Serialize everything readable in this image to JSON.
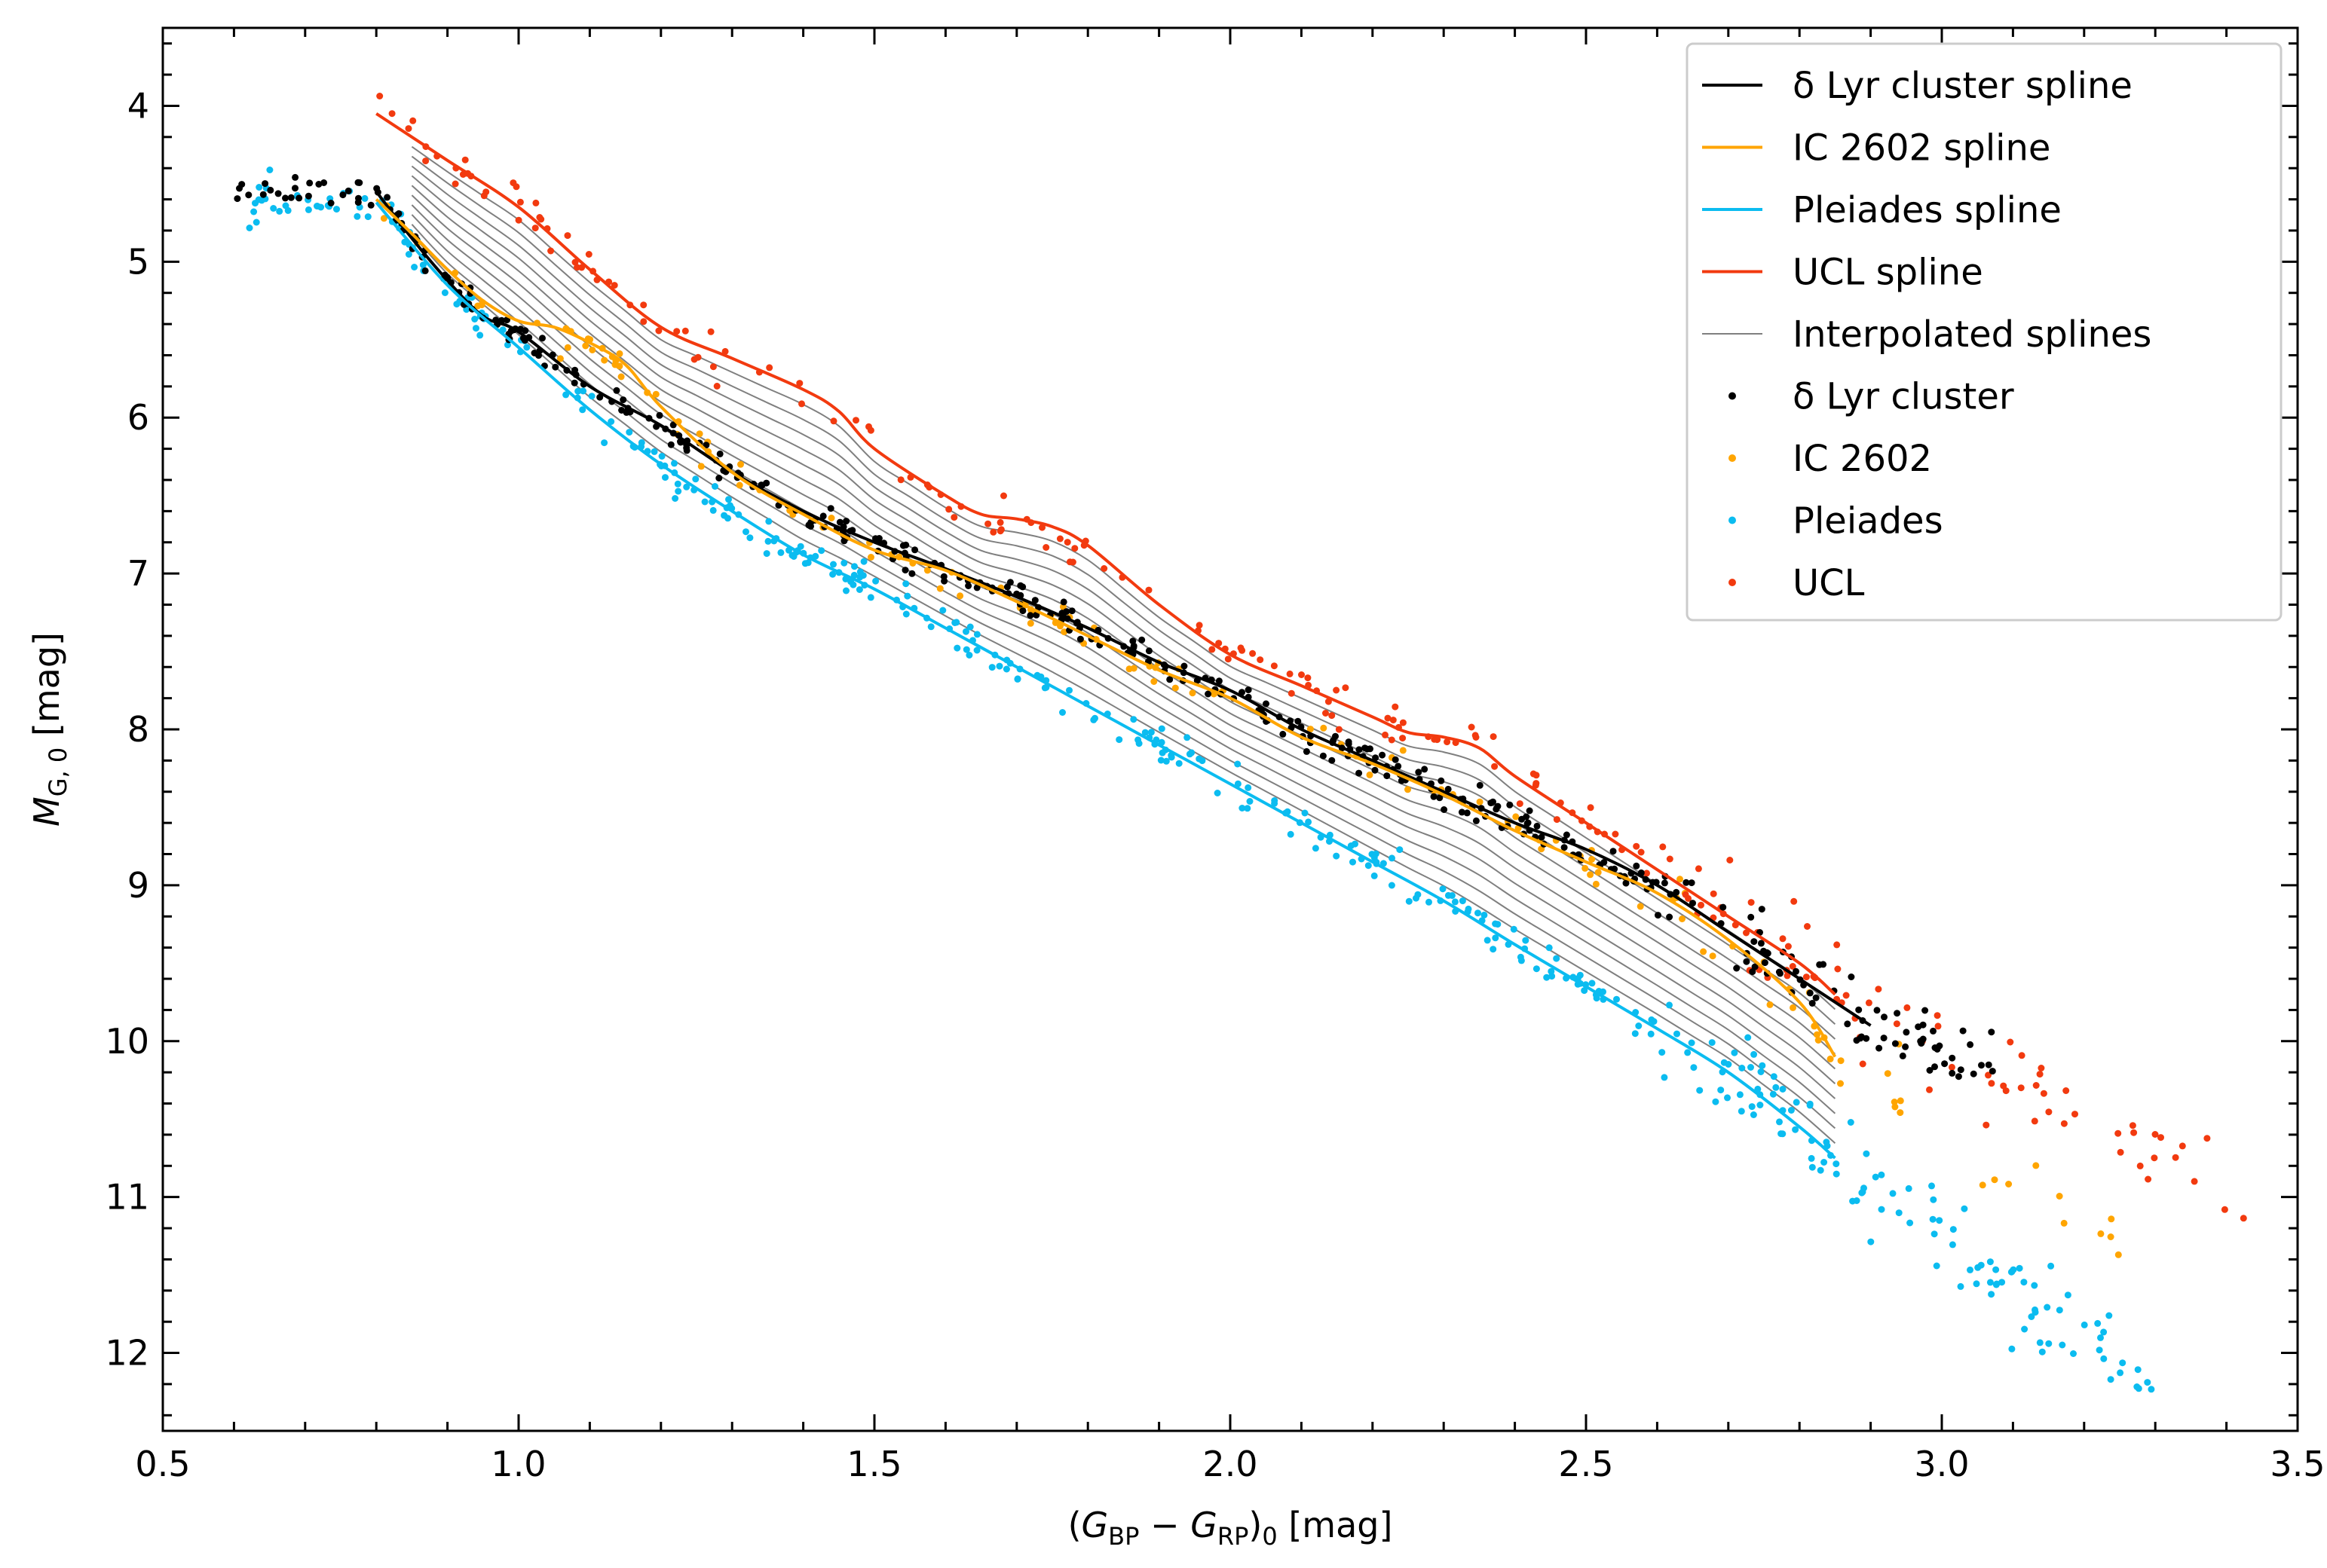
{
  "chart_data": {
    "type": "scatter",
    "xlabel": {
      "main": "G",
      "sub1": "BP",
      "minus": " − ",
      "sub2": "RP",
      "post": "0",
      "unit": " [mag]"
    },
    "ylabel": {
      "main": "M",
      "sub": "G, 0",
      "unit": " [mag]"
    },
    "xlim": [
      0.5,
      3.5
    ],
    "ylim": [
      12.5,
      3.5
    ],
    "y_inverted": true,
    "x_ticks": [
      "0.5",
      "1.0",
      "1.5",
      "2.0",
      "2.5",
      "3.0",
      "3.5"
    ],
    "y_ticks": [
      "4",
      "5",
      "6",
      "7",
      "8",
      "9",
      "10",
      "11",
      "12"
    ],
    "legend_position": "top-right",
    "legend": [
      {
        "label": "δ Lyr cluster spline",
        "kind": "line",
        "color": "#000000"
      },
      {
        "label": "IC 2602 spline",
        "kind": "line",
        "color": "#FFA500"
      },
      {
        "label": "Pleiades spline",
        "kind": "line",
        "color": "#0BBCF0"
      },
      {
        "label": "UCL spline",
        "kind": "line",
        "color": "#F23A0F"
      },
      {
        "label": "Interpolated splines",
        "kind": "thin",
        "color": "#7f7f7f"
      },
      {
        "label": "δ Lyr cluster",
        "kind": "dot",
        "color": "#000000"
      },
      {
        "label": "IC 2602",
        "kind": "dot",
        "color": "#FFA500"
      },
      {
        "label": "Pleiades",
        "kind": "dot",
        "color": "#0BBCF0"
      },
      {
        "label": "UCL",
        "kind": "dot",
        "color": "#F23A0F"
      }
    ],
    "splines": [
      {
        "name": "δ Lyr cluster spline",
        "color": "#000000",
        "x": [
          0.8,
          0.85,
          0.9,
          0.95,
          1.0,
          1.1,
          1.2,
          1.3,
          1.4,
          1.5,
          1.6,
          1.7,
          1.8,
          1.9,
          2.0,
          2.1,
          2.2,
          2.3,
          2.4,
          2.5,
          2.6,
          2.7,
          2.8,
          2.9
        ],
        "y": [
          4.55,
          4.85,
          5.12,
          5.35,
          5.45,
          5.8,
          6.05,
          6.35,
          6.6,
          6.8,
          6.97,
          7.15,
          7.35,
          7.57,
          7.75,
          8.0,
          8.2,
          8.4,
          8.6,
          8.77,
          9.0,
          9.3,
          9.6,
          9.9
        ]
      },
      {
        "name": "IC 2602 spline",
        "color": "#FFA500",
        "x": [
          0.8,
          0.85,
          0.9,
          0.95,
          1.0,
          1.05,
          1.1,
          1.15,
          1.2,
          1.3,
          1.4,
          1.5,
          1.6,
          1.7,
          1.8,
          1.9,
          2.0,
          2.1,
          2.2,
          2.3,
          2.4,
          2.5,
          2.6,
          2.7,
          2.8,
          2.85
        ],
        "y": [
          4.6,
          4.82,
          5.05,
          5.25,
          5.38,
          5.42,
          5.52,
          5.66,
          5.93,
          6.35,
          6.62,
          6.85,
          6.98,
          7.18,
          7.4,
          7.62,
          7.8,
          8.05,
          8.22,
          8.42,
          8.65,
          8.85,
          9.05,
          9.35,
          9.75,
          10.1
        ]
      },
      {
        "name": "Pleiades spline",
        "color": "#0BBCF0",
        "x": [
          0.8,
          0.9,
          1.0,
          1.1,
          1.2,
          1.3,
          1.4,
          1.5,
          1.6,
          1.7,
          1.8,
          1.9,
          2.0,
          2.1,
          2.2,
          2.3,
          2.4,
          2.5,
          2.6,
          2.7,
          2.8,
          2.85
        ],
        "y": [
          4.62,
          5.15,
          5.55,
          5.95,
          6.3,
          6.6,
          6.88,
          7.1,
          7.35,
          7.6,
          7.85,
          8.1,
          8.35,
          8.6,
          8.85,
          9.1,
          9.38,
          9.65,
          9.92,
          10.2,
          10.55,
          10.75
        ]
      },
      {
        "name": "UCL spline",
        "color": "#F23A0F",
        "x": [
          0.8,
          0.9,
          1.0,
          1.1,
          1.2,
          1.3,
          1.4,
          1.45,
          1.5,
          1.6,
          1.65,
          1.7,
          1.75,
          1.8,
          1.9,
          2.0,
          2.1,
          2.2,
          2.25,
          2.3,
          2.35,
          2.4,
          2.5,
          2.6,
          2.7,
          2.8,
          2.85
        ],
        "y": [
          4.05,
          4.35,
          4.65,
          5.05,
          5.42,
          5.62,
          5.82,
          5.96,
          6.2,
          6.5,
          6.62,
          6.65,
          6.7,
          6.82,
          7.2,
          7.52,
          7.72,
          7.92,
          8.02,
          8.05,
          8.12,
          8.3,
          8.6,
          8.9,
          9.2,
          9.5,
          9.7
        ]
      }
    ],
    "interpolated_count": 10,
    "scatter_groups": [
      {
        "name": "δ Lyr cluster",
        "color": "#000000"
      },
      {
        "name": "IC 2602",
        "color": "#FFA500"
      },
      {
        "name": "Pleiades",
        "color": "#0BBCF0"
      },
      {
        "name": "UCL",
        "color": "#F23A0F"
      }
    ]
  }
}
